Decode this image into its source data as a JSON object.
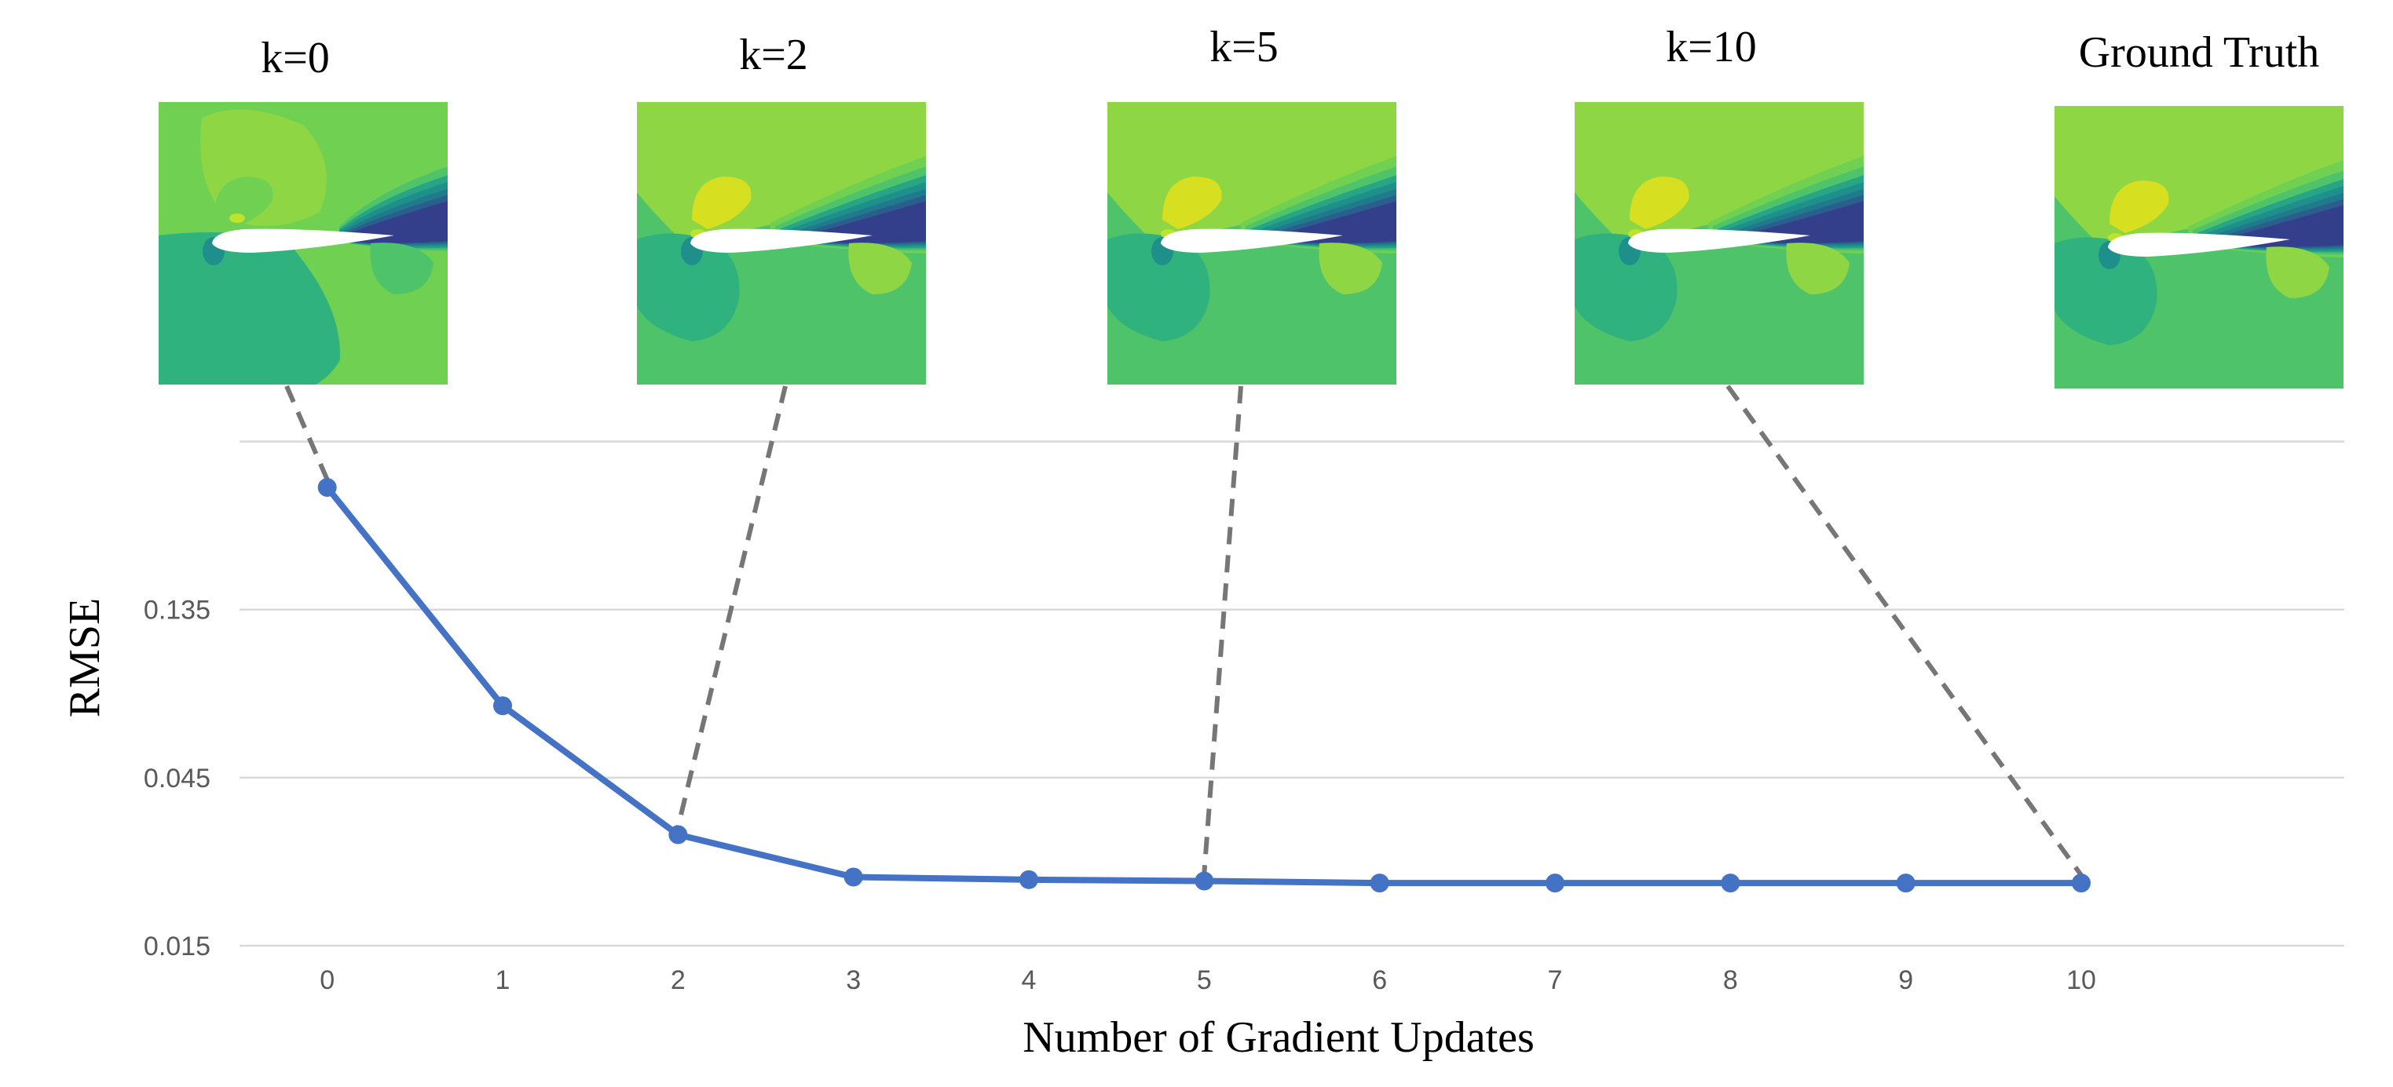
{
  "chart_data": {
    "type": "line",
    "xlabel": "Number of Gradient Updates",
    "ylabel": "RMSE",
    "x": [
      0,
      1,
      2,
      3,
      4,
      5,
      6,
      7,
      8,
      9,
      10
    ],
    "x_tick_labels": [
      "0",
      "1",
      "2",
      "3",
      "4",
      "5",
      "6",
      "7",
      "8",
      "9",
      "10"
    ],
    "y_tick_labels": [
      "0.015",
      "0.045",
      "0.135"
    ],
    "y_tick_values": [
      0.015,
      0.045,
      0.135
    ],
    "y_scale": "log",
    "ylim": [
      0.015,
      0.4
    ],
    "xlim": [
      -0.5,
      11.5
    ],
    "grid": "horizontal",
    "series": [
      {
        "values": [
          0.3,
          0.072,
          0.031,
          0.0235,
          0.0231,
          0.0229,
          0.0226,
          0.0226,
          0.0226,
          0.0226,
          0.0226
        ]
      }
    ],
    "line_color": "#4472c4",
    "connector_color": "#767676",
    "panels": [
      {
        "label": "k=0",
        "k": 0
      },
      {
        "label": "k=2",
        "k": 2
      },
      {
        "label": "k=5",
        "k": 5
      },
      {
        "label": "k=10",
        "k": 10
      },
      {
        "label": "Ground Truth",
        "k": null
      }
    ],
    "field_colors": {
      "bright_yellow": "#d6e020",
      "yellow": "#bee32c",
      "lime": "#8ed644",
      "light_green": "#6fd052",
      "green": "#4fc36a",
      "teal_green": "#2fb27d",
      "teal": "#27a584",
      "cyan": "#1f8f8c",
      "blue_teal": "#1f7a8c",
      "blue": "#2a5f8d",
      "dark_blue": "#333f8a",
      "airfoil": "#ffffff"
    }
  }
}
